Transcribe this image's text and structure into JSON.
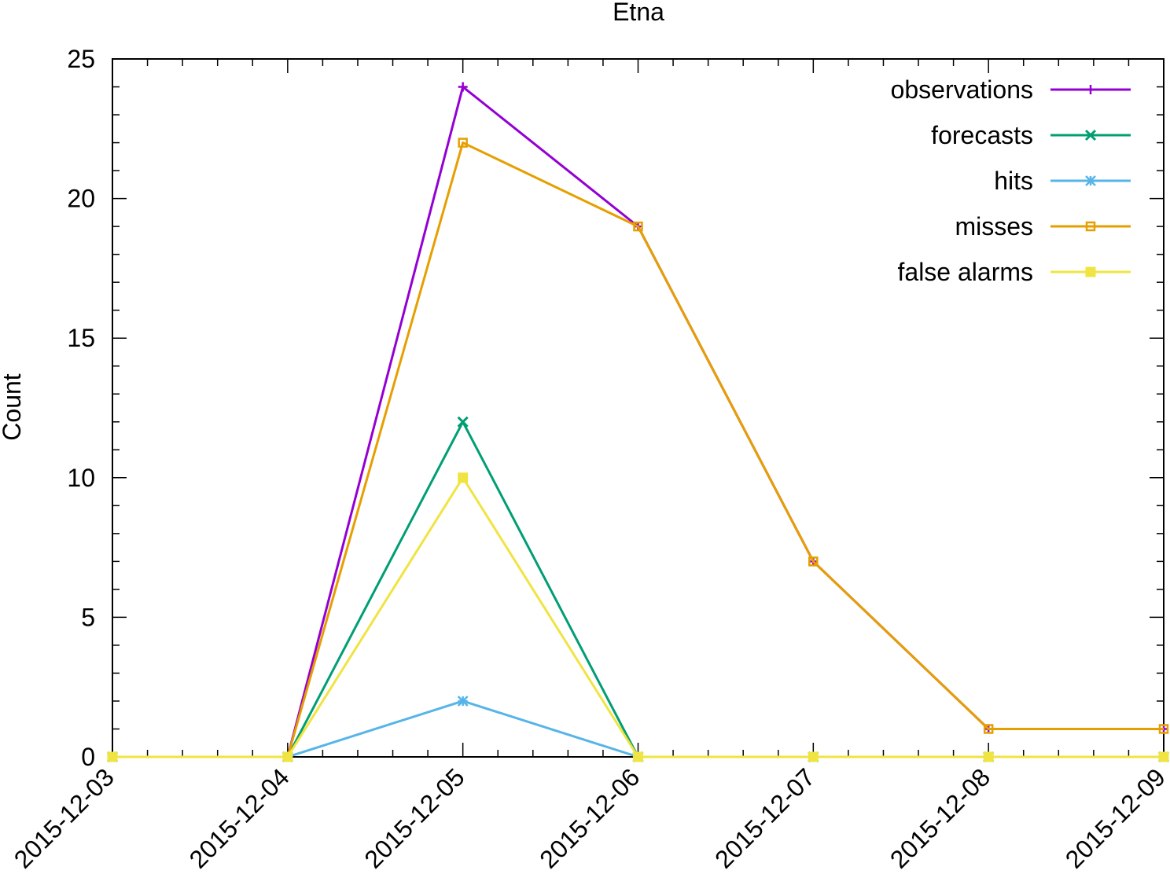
{
  "chart_data": {
    "type": "line",
    "title": "Etna",
    "xlabel": "",
    "ylabel": "Count",
    "x": [
      "2015-12-03",
      "2015-12-04",
      "2015-12-05",
      "2015-12-06",
      "2015-12-07",
      "2015-12-08",
      "2015-12-09"
    ],
    "ylim": [
      0,
      25
    ],
    "yticks": [
      "0",
      "5",
      "10",
      "15",
      "20",
      "25"
    ],
    "grid": false,
    "legend_position": "top-right",
    "series": [
      {
        "name": "observations",
        "color": "#9400d3",
        "marker": "plus",
        "values": [
          0,
          0,
          24,
          19,
          7,
          1,
          1
        ]
      },
      {
        "name": "forecasts",
        "color": "#009e73",
        "marker": "cross",
        "values": [
          0,
          0,
          12,
          0,
          0,
          0,
          0
        ]
      },
      {
        "name": "hits",
        "color": "#56b4e9",
        "marker": "star",
        "values": [
          0,
          0,
          2,
          0,
          0,
          0,
          0
        ]
      },
      {
        "name": "misses",
        "color": "#e69f00",
        "marker": "open-square",
        "values": [
          0,
          0,
          22,
          19,
          7,
          1,
          1
        ]
      },
      {
        "name": "false alarms",
        "color": "#f0e442",
        "marker": "filled-square",
        "values": [
          0,
          0,
          10,
          0,
          0,
          0,
          0
        ]
      }
    ]
  }
}
